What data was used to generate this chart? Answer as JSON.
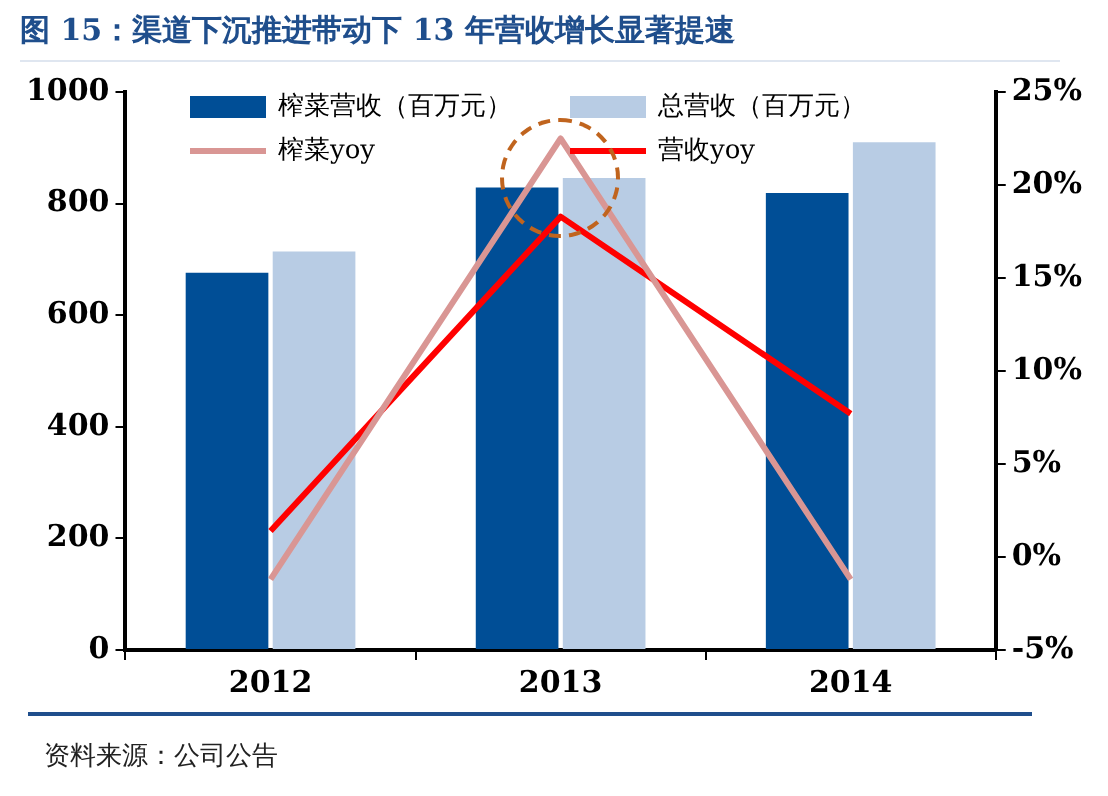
{
  "chart_data": {
    "type": "bar",
    "title": "图 15：渠道下沉推进带动下 13 年营收增长显著提速",
    "categories": [
      "2012",
      "2013",
      "2014"
    ],
    "series": [
      {
        "name": "榨菜营收（百万元）",
        "color": "#004e96",
        "values": [
          676,
          829,
          819
        ]
      },
      {
        "name": "总营收（百万元）",
        "color": "#b8cce4",
        "values": [
          714,
          846,
          910
        ]
      },
      {
        "name": "榨菜yoy",
        "type": "line",
        "axis": "y2",
        "color": "#d99694",
        "values": [
          -1.2,
          22.5,
          -1.2
        ]
      },
      {
        "name": "营收yoy",
        "type": "line",
        "axis": "y2",
        "color": "#ff0000",
        "values": [
          1.4,
          18.3,
          7.7
        ]
      }
    ],
    "ylim": [
      0,
      1000
    ],
    "yticks": [
      0,
      200,
      400,
      600,
      800,
      1000
    ],
    "y2lim": [
      -5,
      25
    ],
    "y2ticks": [
      {
        "value": -5,
        "label": "-5%"
      },
      {
        "value": 0,
        "label": "0%"
      },
      {
        "value": 5,
        "label": "5%"
      },
      {
        "value": 10,
        "label": "10%"
      },
      {
        "value": 15,
        "label": "15%"
      },
      {
        "value": 20,
        "label": "20%"
      },
      {
        "value": 25,
        "label": "25%"
      }
    ],
    "grid": false,
    "legend": "top",
    "marker": "none",
    "annotations": [
      "资料来源：公司公告"
    ]
  }
}
